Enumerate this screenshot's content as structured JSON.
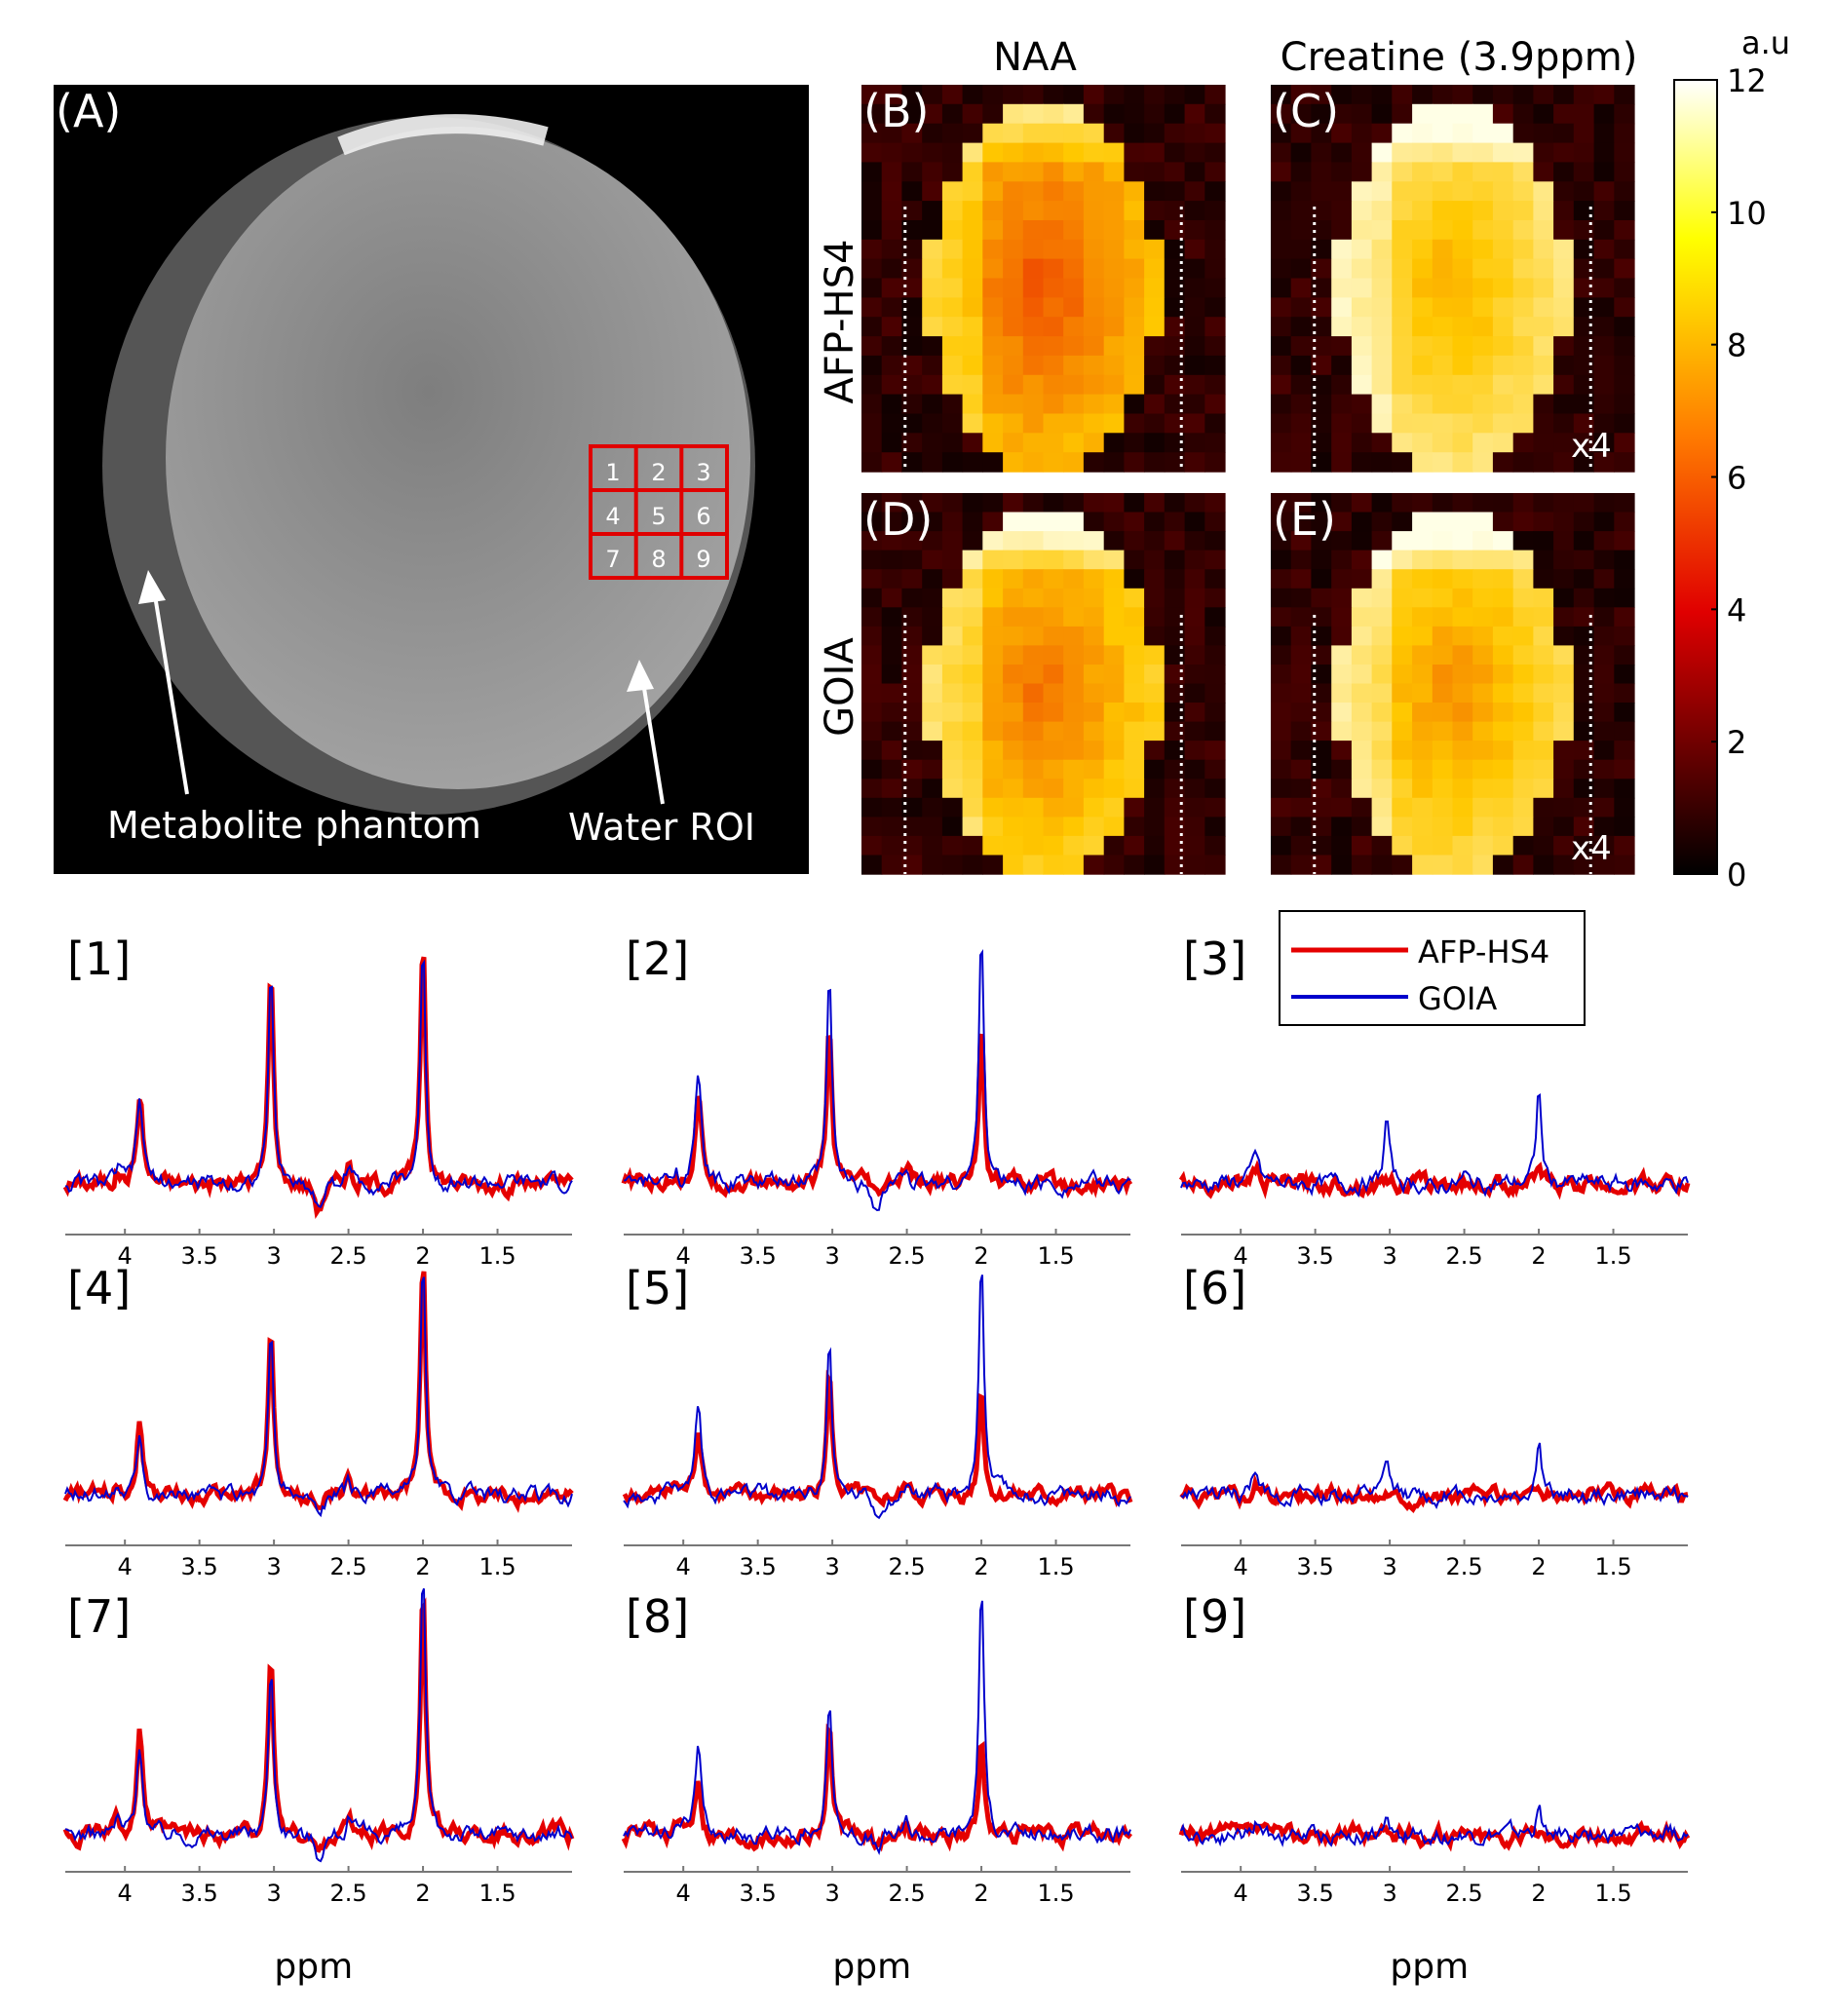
{
  "panel_a": {
    "label": "(A)",
    "roi_numbers": [
      "1",
      "2",
      "3",
      "4",
      "5",
      "6",
      "7",
      "8",
      "9"
    ],
    "annotation_left": "Metabolite phantom",
    "annotation_right": "Water ROI"
  },
  "maps": {
    "column_titles": [
      "NAA",
      "Creatine (3.9ppm)"
    ],
    "row_titles": [
      "AFP-HS4",
      "GOIA"
    ],
    "panel_labels": [
      "(B)",
      "(C)",
      "(D)",
      "(E)"
    ],
    "scale_note": "x4"
  },
  "colorbar": {
    "unit": "a.u",
    "ticks": [
      "0",
      "2",
      "4",
      "6",
      "8",
      "10",
      "12"
    ],
    "range": [
      0,
      12
    ]
  },
  "legend": {
    "red": "AFP-HS4",
    "blue": "GOIA"
  },
  "colors": {
    "afp": "#e50000",
    "goia": "#0000cc",
    "roi_box": "#e00000"
  },
  "chart_data": {
    "type": "line",
    "xlabel": "ppm",
    "x_ticks": [
      "4",
      "3.5",
      "3",
      "2.5",
      "2",
      "1.5"
    ],
    "xlim": [
      4.4,
      1.0
    ],
    "x_reversed": true,
    "panel_labels": [
      "[1]",
      "[2]",
      "[3]",
      "[4]",
      "[5]",
      "[6]",
      "[7]",
      "[8]",
      "[9]"
    ],
    "peaks_ppm": [
      3.9,
      3.02,
      2.0
    ],
    "series_names": [
      "AFP-HS4",
      "GOIA"
    ],
    "panels": [
      {
        "red": [
          0.35,
          0.88,
          1.0
        ],
        "blue": [
          0.33,
          0.85,
          0.97
        ]
      },
      {
        "red": [
          0.35,
          0.64,
          0.66
        ],
        "blue": [
          0.42,
          0.83,
          1.0
        ]
      },
      {
        "red": [
          0.06,
          0.03,
          0.03
        ],
        "blue": [
          0.12,
          0.27,
          0.38
        ]
      },
      {
        "red": [
          0.33,
          0.72,
          1.0
        ],
        "blue": [
          0.28,
          0.68,
          0.98
        ]
      },
      {
        "red": [
          0.28,
          0.52,
          0.48
        ],
        "blue": [
          0.38,
          0.66,
          1.0
        ]
      },
      {
        "red": [
          0.06,
          0.03,
          0.03
        ],
        "blue": [
          0.11,
          0.14,
          0.25
        ]
      },
      {
        "red": [
          0.4,
          0.72,
          1.0
        ],
        "blue": [
          0.36,
          0.68,
          1.02
        ]
      },
      {
        "red": [
          0.25,
          0.45,
          0.38
        ],
        "blue": [
          0.32,
          0.54,
          1.0
        ]
      },
      {
        "red": [
          0.03,
          0.02,
          0.02
        ],
        "blue": [
          0.05,
          0.04,
          0.1
        ]
      }
    ]
  }
}
